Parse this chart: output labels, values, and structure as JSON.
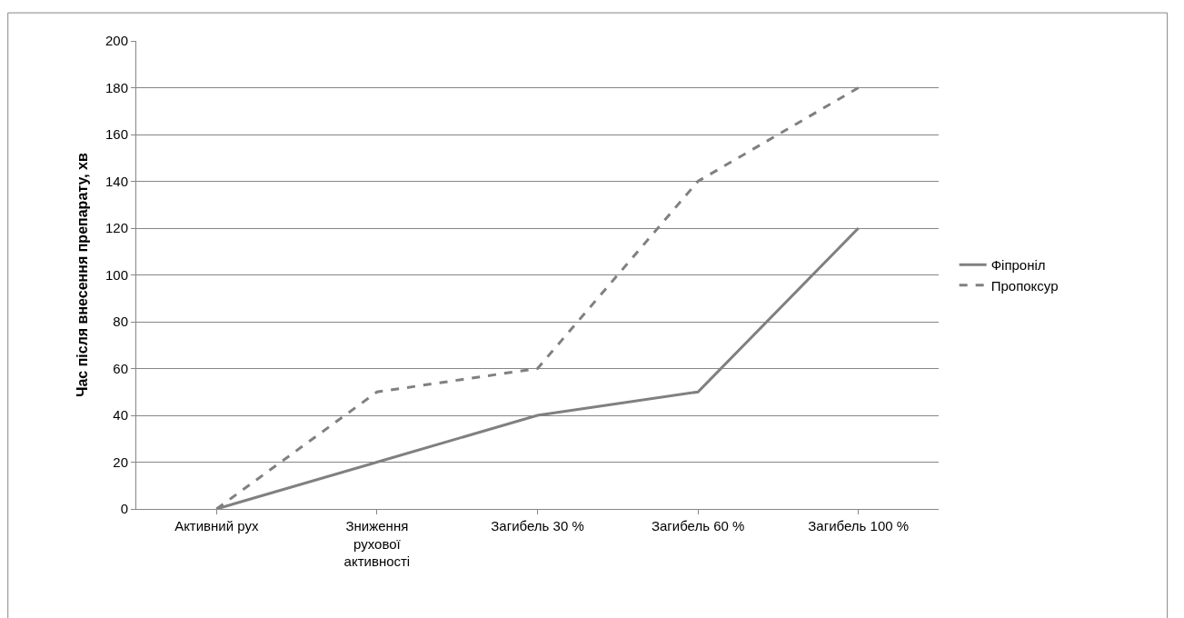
{
  "chart_data": {
    "type": "line",
    "ylabel": "Час після внесення препарату, хв",
    "categories": [
      "Активний рух",
      "Зниження рухової активності",
      "Загибель 30 %",
      "Загибель 60 %",
      "Загибель 100 %"
    ],
    "series": [
      {
        "name": "Фіпроніл",
        "color": "#808080",
        "line_style": "solid",
        "values": [
          0,
          20,
          40,
          50,
          120
        ]
      },
      {
        "name": "Пропоксур",
        "color": "#808080",
        "line_style": "dashed",
        "values": [
          0,
          50,
          60,
          140,
          180
        ]
      }
    ],
    "ylim": [
      0,
      200
    ],
    "yticks": [
      0,
      20,
      40,
      60,
      80,
      100,
      120,
      140,
      160,
      180,
      200
    ],
    "grid": "y",
    "legend": "right",
    "marker": "none"
  }
}
